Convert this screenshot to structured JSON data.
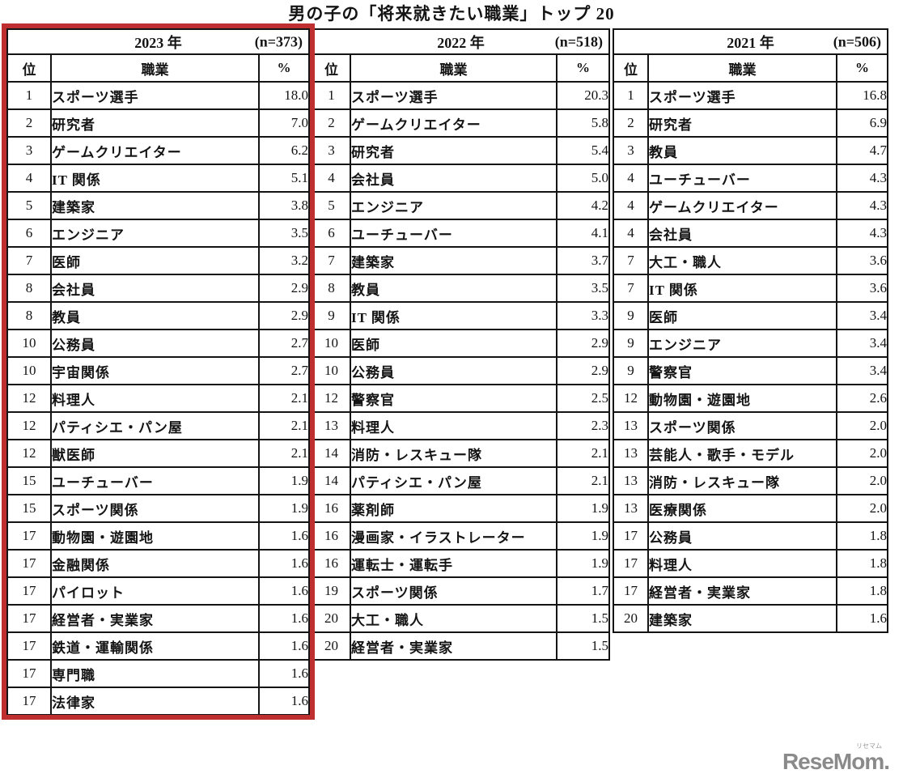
{
  "title": "男の子の「将来就きたい職業」トップ 20",
  "col_headers": {
    "rank": "位",
    "job": "職業",
    "pct": "%"
  },
  "chart_data": {
    "type": "table",
    "title": "男の子の「将来就きたい職業」トップ 20",
    "columns": [
      "位",
      "職業",
      "%"
    ],
    "tables": [
      {
        "year": "2023 年",
        "n": "(n=373)",
        "rows": [
          [
            "1",
            "スポーツ選手",
            "18.0"
          ],
          [
            "2",
            "研究者",
            "7.0"
          ],
          [
            "3",
            "ゲームクリエイター",
            "6.2"
          ],
          [
            "4",
            "IT 関係",
            "5.1"
          ],
          [
            "5",
            "建築家",
            "3.8"
          ],
          [
            "6",
            "エンジニア",
            "3.5"
          ],
          [
            "7",
            "医師",
            "3.2"
          ],
          [
            "8",
            "会社員",
            "2.9"
          ],
          [
            "8",
            "教員",
            "2.9"
          ],
          [
            "10",
            "公務員",
            "2.7"
          ],
          [
            "10",
            "宇宙関係",
            "2.7"
          ],
          [
            "12",
            "料理人",
            "2.1"
          ],
          [
            "12",
            "パティシエ・パン屋",
            "2.1"
          ],
          [
            "12",
            "獣医師",
            "2.1"
          ],
          [
            "15",
            "ユーチューバー",
            "1.9"
          ],
          [
            "15",
            "スポーツ関係",
            "1.9"
          ],
          [
            "17",
            "動物園・遊園地",
            "1.6"
          ],
          [
            "17",
            "金融関係",
            "1.6"
          ],
          [
            "17",
            "パイロット",
            "1.6"
          ],
          [
            "17",
            "経営者・実業家",
            "1.6"
          ],
          [
            "17",
            "鉄道・運輸関係",
            "1.6"
          ],
          [
            "17",
            "専門職",
            "1.6"
          ],
          [
            "17",
            "法律家",
            "1.6"
          ]
        ]
      },
      {
        "year": "2022 年",
        "n": "(n=518)",
        "rows": [
          [
            "1",
            "スポーツ選手",
            "20.3"
          ],
          [
            "2",
            "ゲームクリエイター",
            "5.8"
          ],
          [
            "3",
            "研究者",
            "5.4"
          ],
          [
            "4",
            "会社員",
            "5.0"
          ],
          [
            "5",
            "エンジニア",
            "4.2"
          ],
          [
            "6",
            "ユーチューバー",
            "4.1"
          ],
          [
            "7",
            "建築家",
            "3.7"
          ],
          [
            "8",
            "教員",
            "3.5"
          ],
          [
            "9",
            "IT 関係",
            "3.3"
          ],
          [
            "10",
            "医師",
            "2.9"
          ],
          [
            "10",
            "公務員",
            "2.9"
          ],
          [
            "12",
            "警察官",
            "2.5"
          ],
          [
            "13",
            "料理人",
            "2.3"
          ],
          [
            "14",
            "消防・レスキュー隊",
            "2.1"
          ],
          [
            "14",
            "パティシエ・パン屋",
            "2.1"
          ],
          [
            "16",
            "薬剤師",
            "1.9"
          ],
          [
            "16",
            "漫画家・イラストレーター",
            "1.9"
          ],
          [
            "16",
            "運転士・運転手",
            "1.9"
          ],
          [
            "19",
            "スポーツ関係",
            "1.7"
          ],
          [
            "20",
            "大工・職人",
            "1.5"
          ],
          [
            "20",
            "経営者・実業家",
            "1.5"
          ]
        ]
      },
      {
        "year": "2021 年",
        "n": "(n=506)",
        "rows": [
          [
            "1",
            "スポーツ選手",
            "16.8"
          ],
          [
            "2",
            "研究者",
            "6.9"
          ],
          [
            "3",
            "教員",
            "4.7"
          ],
          [
            "4",
            "ユーチューバー",
            "4.3"
          ],
          [
            "4",
            "ゲームクリエイター",
            "4.3"
          ],
          [
            "4",
            "会社員",
            "4.3"
          ],
          [
            "7",
            "大工・職人",
            "3.6"
          ],
          [
            "7",
            "IT 関係",
            "3.6"
          ],
          [
            "9",
            "医師",
            "3.4"
          ],
          [
            "9",
            "エンジニア",
            "3.4"
          ],
          [
            "9",
            "警察官",
            "3.4"
          ],
          [
            "12",
            "動物園・遊園地",
            "2.6"
          ],
          [
            "13",
            "スポーツ関係",
            "2.0"
          ],
          [
            "13",
            "芸能人・歌手・モデル",
            "2.0"
          ],
          [
            "13",
            "消防・レスキュー隊",
            "2.0"
          ],
          [
            "13",
            "医療関係",
            "2.0"
          ],
          [
            "17",
            "公務員",
            "1.8"
          ],
          [
            "17",
            "料理人",
            "1.8"
          ],
          [
            "17",
            "経営者・実業家",
            "1.8"
          ],
          [
            "20",
            "建築家",
            "1.6"
          ]
        ]
      }
    ]
  },
  "colors": {
    "accent_red": "#bf2f2f",
    "border_black": "#141414",
    "logo_gray": "#8a8a8a"
  },
  "logo": {
    "text": "ReseMom",
    "suffix": ".",
    "ruby": "リセマム"
  }
}
